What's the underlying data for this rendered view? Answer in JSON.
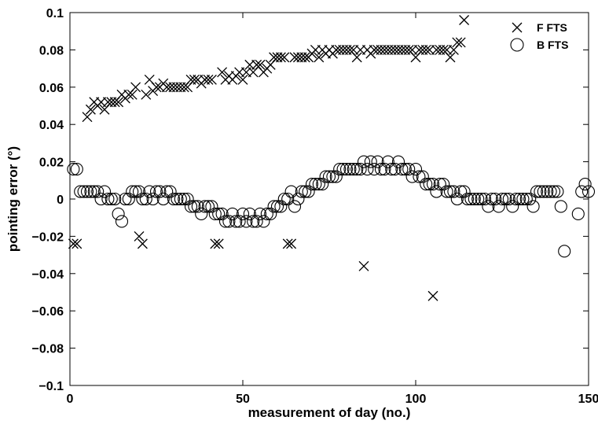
{
  "chart_data": {
    "type": "scatter",
    "title": "",
    "xlabel": "measurement of day (no.)",
    "ylabel": "pointing error (°)",
    "xlim": [
      0,
      150
    ],
    "ylim": [
      -0.1,
      0.1
    ],
    "x_ticks": [
      0,
      50,
      100,
      150
    ],
    "y_ticks": [
      0.1,
      0.08,
      0.06,
      0.04,
      0.02,
      0,
      -0.02,
      -0.04,
      -0.06,
      -0.08,
      -0.1
    ],
    "x_tick_labels": [
      "0",
      "50",
      "100",
      "150"
    ],
    "y_tick_labels": [
      "0.1",
      "0.08",
      "0.06",
      "0.04",
      "0.02",
      "0",
      "−0.02",
      "−0.04",
      "−0.06",
      "−0.08",
      "−0.1"
    ],
    "grid": false,
    "legend_position": "top-right",
    "series": [
      {
        "name": "F FTS",
        "marker": "cross",
        "points": [
          [
            1,
            -0.024
          ],
          [
            2,
            -0.024
          ],
          [
            5,
            0.044
          ],
          [
            6,
            0.048
          ],
          [
            7,
            0.052
          ],
          [
            8,
            0.05
          ],
          [
            9,
            0.052
          ],
          [
            10,
            0.048
          ],
          [
            11,
            0.052
          ],
          [
            12,
            0.052
          ],
          [
            13,
            0.052
          ],
          [
            14,
            0.052
          ],
          [
            15,
            0.056
          ],
          [
            16,
            0.054
          ],
          [
            17,
            0.056
          ],
          [
            18,
            0.056
          ],
          [
            19,
            0.06
          ],
          [
            20,
            -0.02
          ],
          [
            21,
            -0.024
          ],
          [
            22,
            0.056
          ],
          [
            23,
            0.064
          ],
          [
            24,
            0.058
          ],
          [
            25,
            0.06
          ],
          [
            26,
            0.06
          ],
          [
            27,
            0.062
          ],
          [
            28,
            0.06
          ],
          [
            29,
            0.06
          ],
          [
            30,
            0.06
          ],
          [
            31,
            0.06
          ],
          [
            32,
            0.06
          ],
          [
            33,
            0.06
          ],
          [
            34,
            0.06
          ],
          [
            35,
            0.064
          ],
          [
            36,
            0.064
          ],
          [
            37,
            0.064
          ],
          [
            38,
            0.062
          ],
          [
            39,
            0.064
          ],
          [
            40,
            0.064
          ],
          [
            41,
            0.064
          ],
          [
            42,
            -0.024
          ],
          [
            43,
            -0.024
          ],
          [
            44,
            0.068
          ],
          [
            45,
            0.064
          ],
          [
            46,
            0.066
          ],
          [
            47,
            0.064
          ],
          [
            48,
            0.066
          ],
          [
            49,
            0.068
          ],
          [
            50,
            0.064
          ],
          [
            51,
            0.068
          ],
          [
            52,
            0.072
          ],
          [
            53,
            0.068
          ],
          [
            54,
            0.072
          ],
          [
            55,
            0.072
          ],
          [
            56,
            0.068
          ],
          [
            57,
            0.07
          ],
          [
            58,
            0.072
          ],
          [
            59,
            0.076
          ],
          [
            60,
            0.076
          ],
          [
            61,
            0.076
          ],
          [
            62,
            0.076
          ],
          [
            63,
            -0.024
          ],
          [
            64,
            -0.024
          ],
          [
            65,
            0.076
          ],
          [
            66,
            0.076
          ],
          [
            67,
            0.076
          ],
          [
            68,
            0.076
          ],
          [
            69,
            0.076
          ],
          [
            70,
            0.078
          ],
          [
            71,
            0.08
          ],
          [
            72,
            0.076
          ],
          [
            73,
            0.08
          ],
          [
            74,
            0.078
          ],
          [
            75,
            0.08
          ],
          [
            76,
            0.078
          ],
          [
            77,
            0.08
          ],
          [
            78,
            0.08
          ],
          [
            79,
            0.08
          ],
          [
            80,
            0.08
          ],
          [
            81,
            0.08
          ],
          [
            82,
            0.08
          ],
          [
            83,
            0.076
          ],
          [
            84,
            0.08
          ],
          [
            85,
            -0.036
          ],
          [
            86,
            0.08
          ],
          [
            87,
            0.078
          ],
          [
            88,
            0.08
          ],
          [
            89,
            0.08
          ],
          [
            90,
            0.08
          ],
          [
            91,
            0.08
          ],
          [
            92,
            0.08
          ],
          [
            93,
            0.08
          ],
          [
            94,
            0.08
          ],
          [
            95,
            0.08
          ],
          [
            96,
            0.08
          ],
          [
            97,
            0.08
          ],
          [
            98,
            0.08
          ],
          [
            99,
            0.08
          ],
          [
            100,
            0.076
          ],
          [
            101,
            0.08
          ],
          [
            102,
            0.08
          ],
          [
            103,
            0.08
          ],
          [
            104,
            0.08
          ],
          [
            105,
            -0.052
          ],
          [
            106,
            0.08
          ],
          [
            107,
            0.08
          ],
          [
            108,
            0.08
          ],
          [
            109,
            0.08
          ],
          [
            110,
            0.076
          ],
          [
            111,
            0.08
          ],
          [
            112,
            0.084
          ],
          [
            113,
            0.084
          ],
          [
            114,
            0.096
          ]
        ]
      },
      {
        "name": "B FTS",
        "marker": "circle",
        "points": [
          [
            1,
            0.016
          ],
          [
            2,
            0.016
          ],
          [
            3,
            0.004
          ],
          [
            4,
            0.004
          ],
          [
            5,
            0.004
          ],
          [
            6,
            0.004
          ],
          [
            7,
            0.004
          ],
          [
            8,
            0.004
          ],
          [
            9,
            0.0
          ],
          [
            10,
            0.004
          ],
          [
            11,
            0.0
          ],
          [
            12,
            0.0
          ],
          [
            13,
            0.0
          ],
          [
            14,
            -0.008
          ],
          [
            15,
            -0.012
          ],
          [
            16,
            0.0
          ],
          [
            17,
            0.0
          ],
          [
            18,
            0.004
          ],
          [
            19,
            0.004
          ],
          [
            20,
            0.004
          ],
          [
            21,
            0.0
          ],
          [
            22,
            0.0
          ],
          [
            23,
            0.004
          ],
          [
            24,
            0.0
          ],
          [
            25,
            0.004
          ],
          [
            26,
            0.004
          ],
          [
            27,
            0.0
          ],
          [
            28,
            0.004
          ],
          [
            29,
            0.004
          ],
          [
            30,
            0.0
          ],
          [
            31,
            0.0
          ],
          [
            32,
            0.0
          ],
          [
            33,
            0.0
          ],
          [
            34,
            0.0
          ],
          [
            35,
            -0.004
          ],
          [
            36,
            -0.004
          ],
          [
            37,
            -0.004
          ],
          [
            38,
            -0.008
          ],
          [
            39,
            -0.004
          ],
          [
            40,
            -0.004
          ],
          [
            41,
            -0.004
          ],
          [
            42,
            -0.008
          ],
          [
            43,
            -0.008
          ],
          [
            44,
            -0.008
          ],
          [
            45,
            -0.012
          ],
          [
            46,
            -0.012
          ],
          [
            47,
            -0.008
          ],
          [
            48,
            -0.012
          ],
          [
            49,
            -0.012
          ],
          [
            50,
            -0.008
          ],
          [
            51,
            -0.012
          ],
          [
            52,
            -0.008
          ],
          [
            53,
            -0.012
          ],
          [
            54,
            -0.012
          ],
          [
            55,
            -0.008
          ],
          [
            56,
            -0.012
          ],
          [
            57,
            -0.008
          ],
          [
            58,
            -0.008
          ],
          [
            59,
            -0.004
          ],
          [
            60,
            -0.004
          ],
          [
            61,
            -0.004
          ],
          [
            62,
            0.0
          ],
          [
            63,
            0.0
          ],
          [
            64,
            0.004
          ],
          [
            65,
            -0.004
          ],
          [
            66,
            0.0
          ],
          [
            67,
            0.004
          ],
          [
            68,
            0.004
          ],
          [
            69,
            0.004
          ],
          [
            70,
            0.008
          ],
          [
            71,
            0.008
          ],
          [
            72,
            0.008
          ],
          [
            73,
            0.008
          ],
          [
            74,
            0.012
          ],
          [
            75,
            0.012
          ],
          [
            76,
            0.012
          ],
          [
            77,
            0.012
          ],
          [
            78,
            0.016
          ],
          [
            79,
            0.016
          ],
          [
            80,
            0.016
          ],
          [
            81,
            0.016
          ],
          [
            82,
            0.016
          ],
          [
            83,
            0.016
          ],
          [
            84,
            0.016
          ],
          [
            85,
            0.02
          ],
          [
            86,
            0.016
          ],
          [
            87,
            0.02
          ],
          [
            88,
            0.016
          ],
          [
            89,
            0.02
          ],
          [
            90,
            0.016
          ],
          [
            91,
            0.016
          ],
          [
            92,
            0.02
          ],
          [
            93,
            0.016
          ],
          [
            94,
            0.016
          ],
          [
            95,
            0.02
          ],
          [
            96,
            0.016
          ],
          [
            97,
            0.016
          ],
          [
            98,
            0.016
          ],
          [
            99,
            0.012
          ],
          [
            100,
            0.016
          ],
          [
            101,
            0.012
          ],
          [
            102,
            0.012
          ],
          [
            103,
            0.008
          ],
          [
            104,
            0.008
          ],
          [
            105,
            0.008
          ],
          [
            106,
            0.004
          ],
          [
            107,
            0.008
          ],
          [
            108,
            0.008
          ],
          [
            109,
            0.004
          ],
          [
            110,
            0.004
          ],
          [
            111,
            0.004
          ],
          [
            112,
            0.0
          ],
          [
            113,
            0.004
          ],
          [
            114,
            0.004
          ],
          [
            115,
            0.0
          ],
          [
            116,
            0.0
          ],
          [
            117,
            0.0
          ],
          [
            118,
            0.0
          ],
          [
            119,
            0.0
          ],
          [
            120,
            0.0
          ],
          [
            121,
            -0.004
          ],
          [
            122,
            0.0
          ],
          [
            123,
            0.0
          ],
          [
            124,
            -0.004
          ],
          [
            125,
            0.0
          ],
          [
            126,
            0.0
          ],
          [
            127,
            0.0
          ],
          [
            128,
            -0.004
          ],
          [
            129,
            0.0
          ],
          [
            130,
            0.0
          ],
          [
            131,
            0.0
          ],
          [
            132,
            0.0
          ],
          [
            133,
            0.0
          ],
          [
            134,
            -0.004
          ],
          [
            135,
            0.004
          ],
          [
            136,
            0.004
          ],
          [
            137,
            0.004
          ],
          [
            138,
            0.004
          ],
          [
            139,
            0.004
          ],
          [
            140,
            0.004
          ],
          [
            141,
            0.004
          ],
          [
            142,
            -0.004
          ],
          [
            143,
            -0.028
          ],
          [
            147,
            -0.008
          ],
          [
            148,
            0.004
          ],
          [
            149,
            0.008
          ],
          [
            150,
            0.004
          ]
        ]
      }
    ]
  }
}
